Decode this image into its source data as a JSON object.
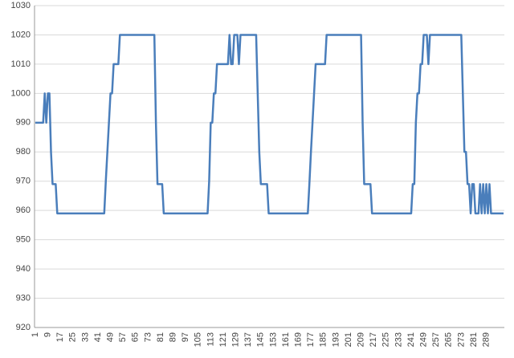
{
  "chart_data": {
    "type": "line",
    "categories": [
      "1",
      null,
      null,
      null,
      null,
      null,
      null,
      null,
      "9",
      null,
      null,
      null,
      null,
      null,
      null,
      null,
      "17",
      null,
      null,
      null,
      null,
      null,
      null,
      null,
      "25",
      null,
      null,
      null,
      null,
      null,
      null,
      null,
      "33",
      null,
      null,
      null,
      null,
      null,
      null,
      null,
      "41",
      null,
      null,
      null,
      null,
      null,
      null,
      null,
      "49",
      null,
      null,
      null,
      null,
      null,
      null,
      null,
      "57",
      null,
      null,
      null,
      null,
      null,
      null,
      null,
      "65",
      null,
      null,
      null,
      null,
      null,
      null,
      null,
      "73",
      null,
      null,
      null,
      null,
      null,
      null,
      null,
      "81",
      null,
      null,
      null,
      null,
      null,
      null,
      null,
      "89",
      null,
      null,
      null,
      null,
      null,
      null,
      null,
      "97",
      null,
      null,
      null,
      null,
      null,
      null,
      null,
      "105",
      null,
      null,
      null,
      null,
      null,
      null,
      null,
      "113",
      null,
      null,
      null,
      null,
      null,
      null,
      null,
      "121",
      null,
      null,
      null,
      null,
      null,
      null,
      null,
      "129",
      null,
      null,
      null,
      null,
      null,
      null,
      null,
      "137",
      null,
      null,
      null,
      null,
      null,
      null,
      null,
      "145",
      null,
      null,
      null,
      null,
      null,
      null,
      null,
      "153",
      null,
      null,
      null,
      null,
      null,
      null,
      null,
      "161",
      null,
      null,
      null,
      null,
      null,
      null,
      null,
      "169",
      null,
      null,
      null,
      null,
      null,
      null,
      null,
      "177",
      null,
      null,
      null,
      null,
      null,
      null,
      null,
      "185",
      null,
      null,
      null,
      null,
      null,
      null,
      null,
      "193",
      null,
      null,
      null,
      null,
      null,
      null,
      null,
      "201",
      null,
      null,
      null,
      null,
      null,
      null,
      null,
      "209",
      null,
      null,
      null,
      null,
      null,
      null,
      null,
      "217",
      null,
      null,
      null,
      null,
      null,
      null,
      null,
      "225",
      null,
      null,
      null,
      null,
      null,
      null,
      null,
      "233",
      null,
      null,
      null,
      null,
      null,
      null,
      null,
      "241",
      null,
      null,
      null,
      null,
      null,
      null,
      null,
      "249",
      null,
      null,
      null,
      null,
      null,
      null,
      null,
      "257",
      null,
      null,
      null,
      null,
      null,
      null,
      null,
      "265",
      null,
      null,
      null,
      null,
      null,
      null,
      null,
      "273",
      null,
      null,
      null,
      null,
      null,
      null,
      null,
      "281",
      null,
      null,
      null,
      null,
      null,
      null,
      null,
      "289",
      null,
      null,
      null,
      null,
      null,
      null,
      null,
      null,
      null,
      null,
      null
    ],
    "series": [
      {
        "color": "#4a7ebb",
        "values": [
          990,
          990,
          990,
          990,
          990,
          990,
          1000,
          990,
          1000,
          1000,
          980,
          969,
          969,
          969,
          959,
          959,
          959,
          959,
          959,
          959,
          959,
          959,
          959,
          959,
          959,
          959,
          959,
          959,
          959,
          959,
          959,
          959,
          959,
          959,
          959,
          959,
          959,
          959,
          959,
          959,
          959,
          959,
          959,
          959,
          959,
          970,
          980,
          990,
          1000,
          1000,
          1010,
          1010,
          1010,
          1010,
          1020,
          1020,
          1020,
          1020,
          1020,
          1020,
          1020,
          1020,
          1020,
          1020,
          1020,
          1020,
          1020,
          1020,
          1020,
          1020,
          1020,
          1020,
          1020,
          1020,
          1020,
          1020,
          1020,
          990,
          969,
          969,
          969,
          969,
          959,
          959,
          959,
          959,
          959,
          959,
          959,
          959,
          959,
          959,
          959,
          959,
          959,
          959,
          959,
          959,
          959,
          959,
          959,
          959,
          959,
          959,
          959,
          959,
          959,
          959,
          959,
          959,
          959,
          970,
          990,
          990,
          1000,
          1000,
          1010,
          1010,
          1010,
          1010,
          1010,
          1010,
          1010,
          1010,
          1020,
          1010,
          1010,
          1020,
          1020,
          1020,
          1010,
          1020,
          1020,
          1020,
          1020,
          1020,
          1020,
          1020,
          1020,
          1020,
          1020,
          1020,
          1000,
          980,
          969,
          969,
          969,
          969,
          969,
          959,
          959,
          959,
          959,
          959,
          959,
          959,
          959,
          959,
          959,
          959,
          959,
          959,
          959,
          959,
          959,
          959,
          959,
          959,
          959,
          959,
          959,
          959,
          959,
          959,
          959,
          969,
          980,
          990,
          1000,
          1010,
          1010,
          1010,
          1010,
          1010,
          1010,
          1010,
          1020,
          1020,
          1020,
          1020,
          1020,
          1020,
          1020,
          1020,
          1020,
          1020,
          1020,
          1020,
          1020,
          1020,
          1020,
          1020,
          1020,
          1020,
          1020,
          1020,
          1020,
          1020,
          1020,
          990,
          969,
          969,
          969,
          969,
          969,
          959,
          959,
          959,
          959,
          959,
          959,
          959,
          959,
          959,
          959,
          959,
          959,
          959,
          959,
          959,
          959,
          959,
          959,
          959,
          959,
          959,
          959,
          959,
          959,
          959,
          959,
          969,
          969,
          990,
          1000,
          1000,
          1010,
          1010,
          1020,
          1020,
          1020,
          1010,
          1020,
          1020,
          1020,
          1020,
          1020,
          1020,
          1020,
          1020,
          1020,
          1020,
          1020,
          1020,
          1020,
          1020,
          1020,
          1020,
          1020,
          1020,
          1020,
          1020,
          1020,
          1000,
          980,
          980,
          969,
          969,
          959,
          969,
          969,
          959,
          959,
          959,
          969,
          959,
          969,
          959,
          969,
          959,
          969,
          959,
          959,
          959,
          959,
          959,
          959,
          959,
          959,
          959
        ]
      }
    ],
    "ylim": [
      920,
      1030
    ],
    "yticks": [
      920,
      930,
      940,
      950,
      960,
      970,
      980,
      990,
      1000,
      1010,
      1020,
      1030
    ],
    "grid": true
  }
}
